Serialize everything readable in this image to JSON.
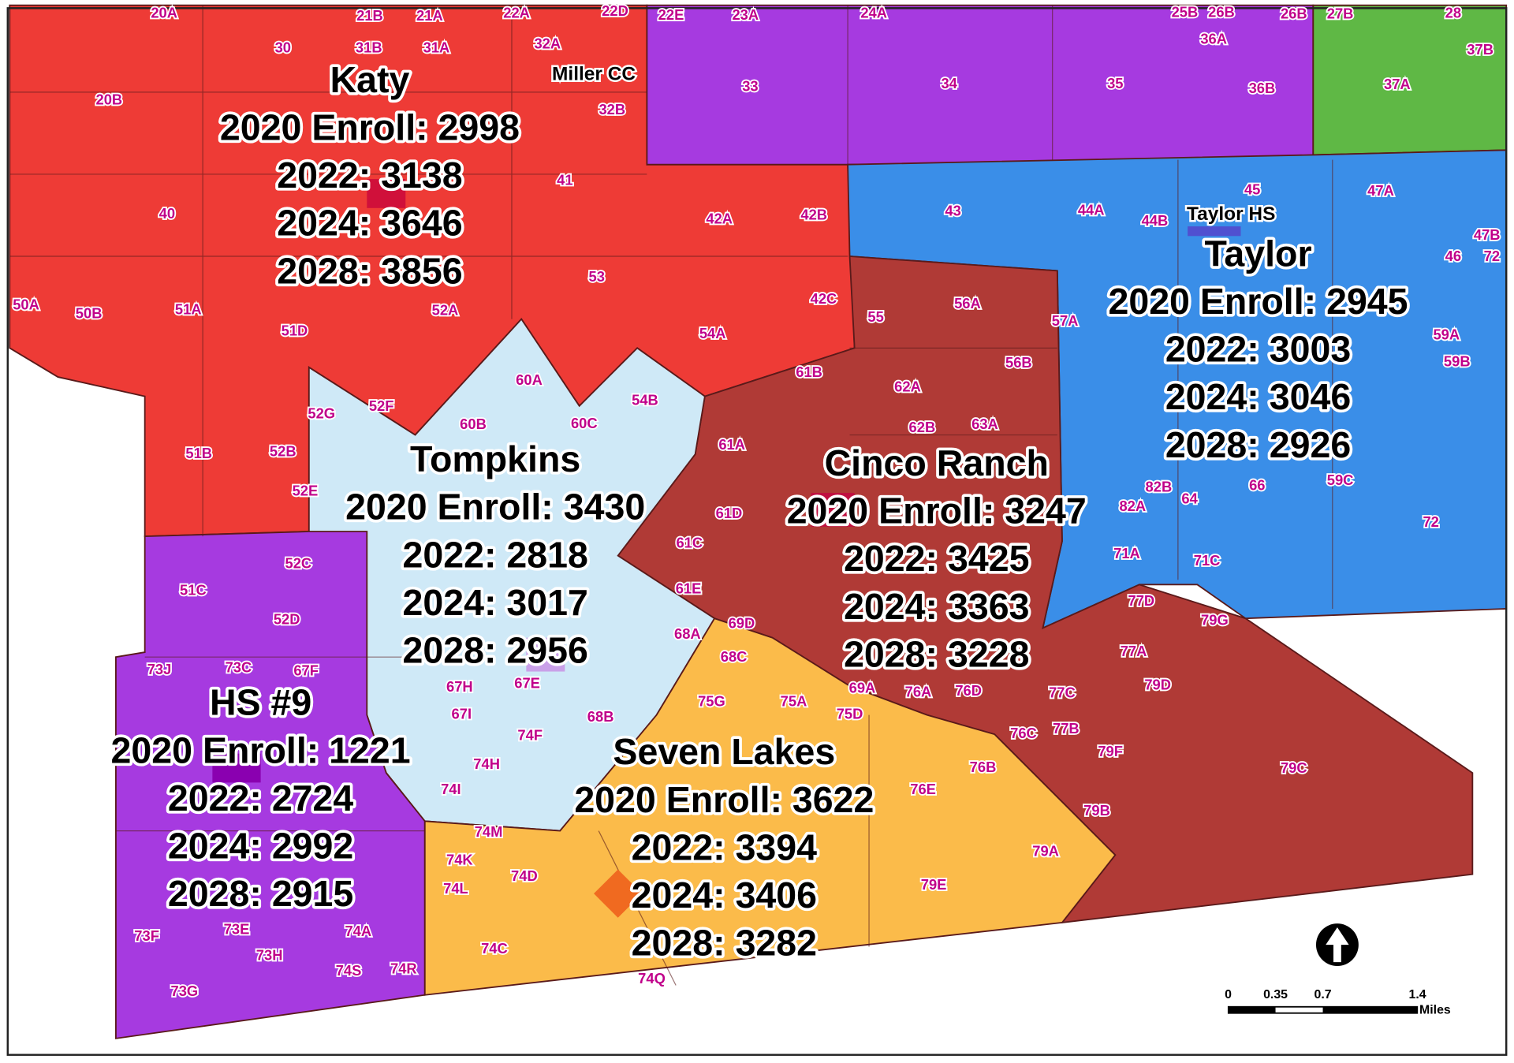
{
  "map": {
    "schools": [
      {
        "name": "Katy",
        "lines": [
          "2020 Enroll: 2998",
          "2022: 3138",
          "2024: 3646",
          "2028: 3856"
        ]
      },
      {
        "name": "Taylor",
        "lines": [
          "2020 Enroll: 2945",
          "2022: 3003",
          "2024: 3046",
          "2028: 2926"
        ]
      },
      {
        "name": "Tompkins",
        "lines": [
          "2020 Enroll: 3430",
          "2022: 2818",
          "2024: 3017",
          "2028: 2956"
        ]
      },
      {
        "name": "Cinco Ranch",
        "lines": [
          "2020 Enroll: 3247",
          "2022: 3425",
          "2024: 3363",
          "2028: 3228"
        ]
      },
      {
        "name": "HS #9",
        "lines": [
          "2020 Enroll: 1221",
          "2022: 2724",
          "2024: 2992",
          "2028: 2915"
        ]
      },
      {
        "name": "Seven Lakes",
        "lines": [
          "2020 Enroll: 3622",
          "2022: 3394",
          "2024: 3406",
          "2028: 3282"
        ]
      }
    ],
    "facilities": [
      "Miller CC",
      "Taylor HS"
    ],
    "zones": [
      "20A",
      "21B",
      "21A",
      "22A",
      "22D",
      "22E",
      "23A",
      "24A",
      "25B",
      "26B",
      "26B",
      "27B",
      "28",
      "37B",
      "30",
      "31B",
      "31A",
      "32A",
      "33",
      "34",
      "35",
      "36A",
      "36B",
      "37A",
      "20B",
      "32B",
      "41",
      "40",
      "42A",
      "42B",
      "43",
      "44A",
      "44B",
      "45",
      "47A",
      "47B",
      "46",
      "72",
      "53",
      "50A",
      "50B",
      "51A",
      "51D",
      "52A",
      "42C",
      "55",
      "56A",
      "57A",
      "54A",
      "59A",
      "59B",
      "56B",
      "61B",
      "60A",
      "54B",
      "52F",
      "52G",
      "62A",
      "60B",
      "60C",
      "62B",
      "63A",
      "61A",
      "51B",
      "52B",
      "82B",
      "64",
      "66",
      "59C",
      "52E",
      "61D",
      "82A",
      "72",
      "61C",
      "52C",
      "71A",
      "71C",
      "51C",
      "61E",
      "77D",
      "52D",
      "79G",
      "69D",
      "68A",
      "68C",
      "77A",
      "73J",
      "73C",
      "67F",
      "69A",
      "76A",
      "76D",
      "79D",
      "75G",
      "75A",
      "75D",
      "77C",
      "67H",
      "67E",
      "67I",
      "68B",
      "76C",
      "77B",
      "74F",
      "74H",
      "79F",
      "79C",
      "76B",
      "74I",
      "76E",
      "79B",
      "74M",
      "79A",
      "74K",
      "74D",
      "74L",
      "79E",
      "73F",
      "73E",
      "74A",
      "73H",
      "74C",
      "74S",
      "74R",
      "74Q",
      "73G"
    ],
    "scale_bar": {
      "ticks": [
        "0",
        "0.35",
        "0.7",
        "1.4"
      ],
      "unit": "Miles"
    }
  }
}
